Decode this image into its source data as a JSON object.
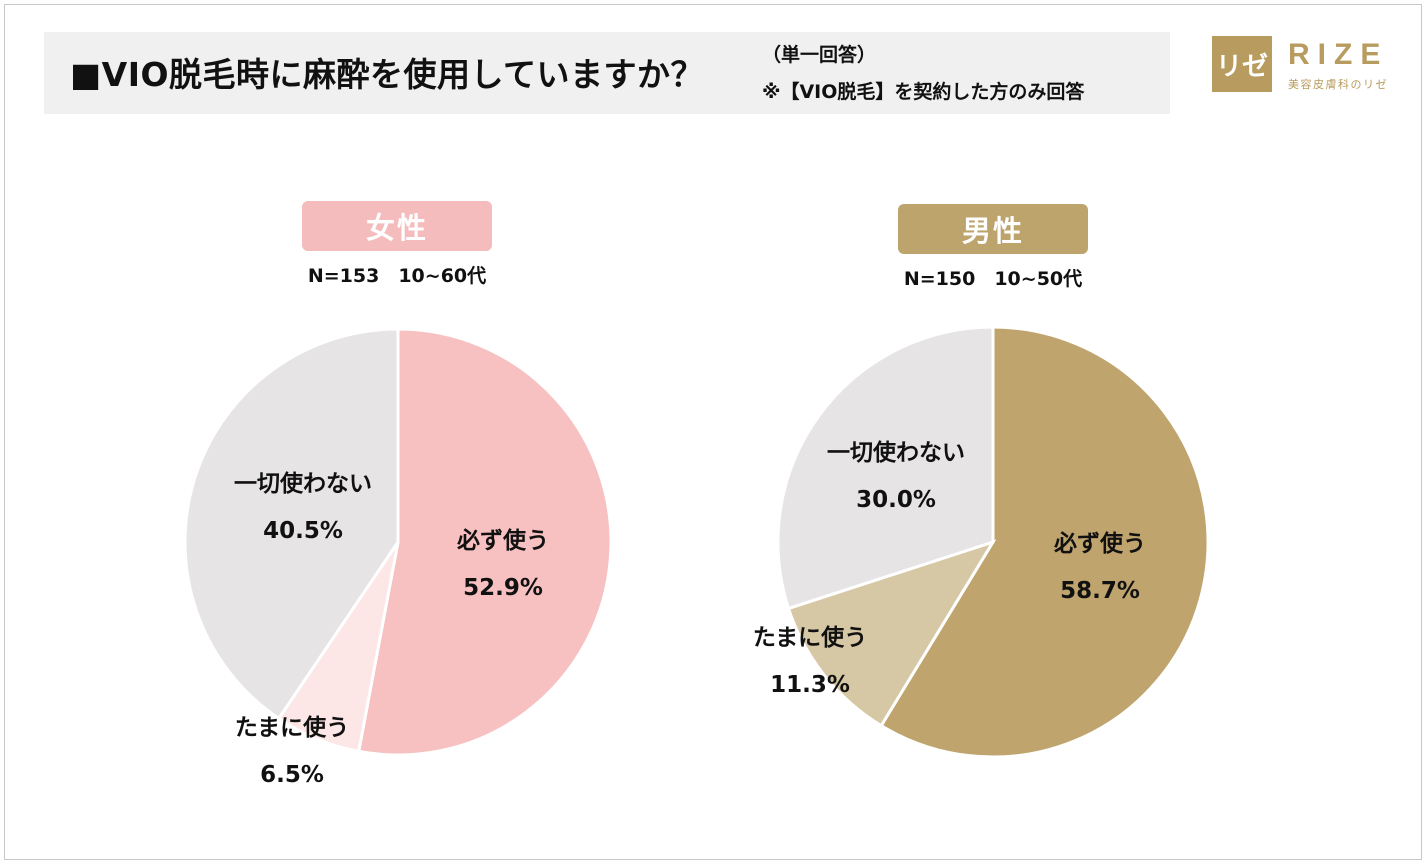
{
  "header": {
    "title": "■VIO脱毛時に麻酔を使用していますか？",
    "note_single": "（単一回答）",
    "note_scope": "※【VIO脱毛】を契約した方のみ回答"
  },
  "logo": {
    "mark": "リゼ",
    "word": "RIZE",
    "tagline": "美容皮膚科のリゼ"
  },
  "colors": {
    "female_main": "#f6c1c0",
    "female_sub": "#fde6e6",
    "male_main": "#bfa46d",
    "male_sub": "#d7c8a5",
    "none": "#e6e4e5"
  },
  "chart_data": [
    {
      "type": "pie",
      "title": "女性",
      "sample": "N=153　10~60代",
      "slices": [
        {
          "label": "必ず使う",
          "value": 52.9,
          "value_label": "52.9%"
        },
        {
          "label": "たまに使う",
          "value": 6.5,
          "value_label": "6.5%"
        },
        {
          "label": "一切使わない",
          "value": 40.5,
          "value_label": "40.5%"
        }
      ]
    },
    {
      "type": "pie",
      "title": "男性",
      "sample": "N=150　10~50代",
      "slices": [
        {
          "label": "必ず使う",
          "value": 58.7,
          "value_label": "58.7%"
        },
        {
          "label": "たまに使う",
          "value": 11.3,
          "value_label": "11.3%"
        },
        {
          "label": "一切使わない",
          "value": 30.0,
          "value_label": "30.0%"
        }
      ]
    }
  ]
}
